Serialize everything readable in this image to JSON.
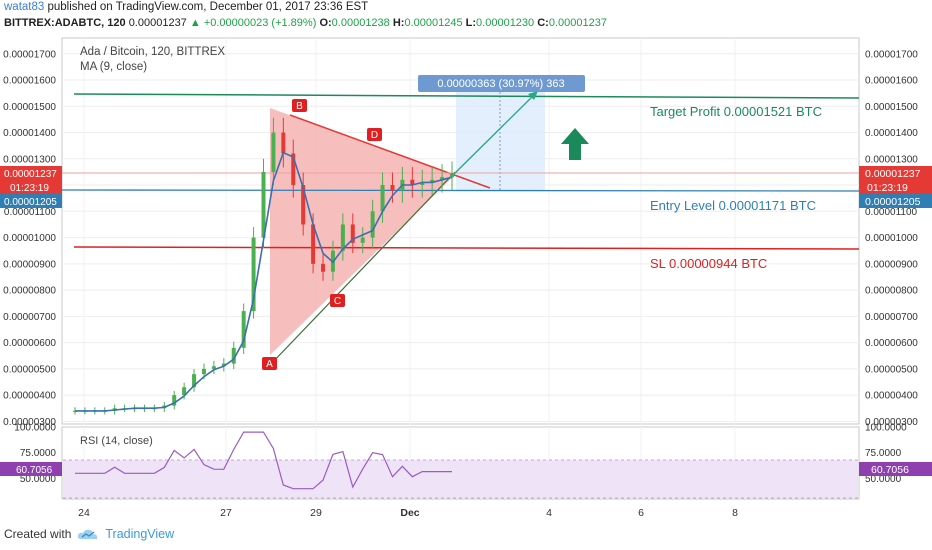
{
  "header": {
    "author": "watat83",
    "published_text": "published on TradingView.com, December 01, 2017 23:36 EST",
    "symbol": "BITTREX:ADABTC, 120",
    "last": "0.00001237",
    "change": "+0.00000023 (+1.89%)",
    "o_label": "O:",
    "o_val": "0.00001238",
    "h_label": "H:",
    "h_val": "0.00001245",
    "l_label": "L:",
    "l_val": "0.00001230",
    "c_label": "C:",
    "c_val": "0.00001237"
  },
  "chart_legend": {
    "title": "Ada / Bitcoin, 120, BITTREX",
    "ma": "MA (9, close)",
    "rsi": "RSI (14, close)"
  },
  "annotations": {
    "range_box": "0.00000363 (30.97%) 363",
    "target": "Target Profit 0.00001521 BTC",
    "entry": "Entry Level 0.00001171 BTC",
    "sl": "SL 0.00000944 BTC",
    "point_a": "A",
    "point_b": "B",
    "point_c": "C",
    "point_d": "D"
  },
  "badges": {
    "price": "0.00001237",
    "time": "01:23:19",
    "entry_price": "0.00001205",
    "rsi_value": "60.7056"
  },
  "footer": {
    "created_with": "Created with",
    "brand": "TradingView"
  },
  "colors": {
    "bull": "#4caf50",
    "bear": "#e53935",
    "ma": "#3a6fb0",
    "target": "#1b8a5a",
    "entry": "#2f7fb5",
    "sl": "#e02020",
    "triangle_fill": "#f6b3b3",
    "rsi_band": "#efe3f8",
    "rsi_line": "#9c5bc4"
  },
  "chart_data": {
    "type": "candlestick",
    "title": "Ada / Bitcoin, 120, BITTREX",
    "y_ticks": [
      "0.00001700",
      "0.00001600",
      "0.00001500",
      "0.00001400",
      "0.00001300",
      "0.00001200",
      "0.00001100",
      "0.00001000",
      "0.00000900",
      "0.00000800",
      "0.00000700",
      "0.00000600",
      "0.00000500",
      "0.00000400",
      "0.00000300"
    ],
    "ylim": [
      2.9e-06,
      1.76e-05
    ],
    "x_ticks": [
      "24",
      "27",
      "29",
      "Dec",
      "4",
      "6",
      "8"
    ],
    "rsi_ticks": [
      "100.0000",
      "75.0000",
      "50.0000"
    ],
    "levels": {
      "target": 1.521e-05,
      "entry": 1.171e-05,
      "stop_loss": 9.44e-06,
      "current": 1.237e-05,
      "entry_marker": 1.205e-05
    },
    "pattern_points": {
      "A": 5.1e-06,
      "B": 1.46e-05,
      "C": 7.8e-06,
      "D": 1.33e-05
    },
    "close_series_approx": [
      3.4e-06,
      3.4e-06,
      3.4e-06,
      3.4e-06,
      3.5e-06,
      3.5e-06,
      3.5e-06,
      3.5e-06,
      3.5e-06,
      3.6e-06,
      4e-06,
      4.3e-06,
      4.8e-06,
      5e-06,
      5.1e-06,
      5.2e-06,
      5.8e-06,
      7.2e-06,
      1e-05,
      1.25e-05,
      1.4e-05,
      1.32e-05,
      1.2e-05,
      1.05e-05,
      9e-06,
      8.7e-06,
      9.5e-06,
      1.05e-05,
      9.8e-06,
      1e-05,
      1.1e-05,
      1.2e-05,
      1.18e-05,
      1.22e-05,
      1.2e-05,
      1.21e-05,
      1.22e-05,
      1.23e-05,
      1.24e-05
    ],
    "rsi_current": 60.7056
  }
}
